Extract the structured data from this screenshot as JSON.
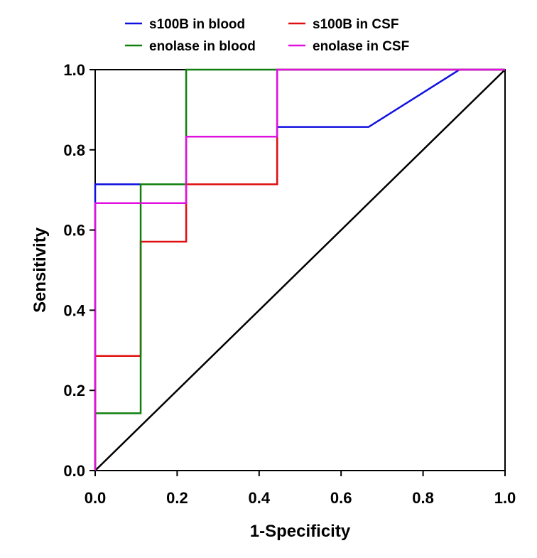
{
  "chart_data": {
    "type": "line",
    "title": "",
    "xlabel": "1-Specificity",
    "ylabel": "Sensitivity",
    "xlim": [
      0,
      1
    ],
    "ylim": [
      0,
      1
    ],
    "xticks": [
      "0.0",
      "0.2",
      "0.4",
      "0.6",
      "0.8",
      "1.0"
    ],
    "yticks": [
      "0.0",
      "0.2",
      "0.4",
      "0.6",
      "0.8",
      "1.0"
    ],
    "grid": false,
    "legend_position": "top",
    "series": [
      {
        "name": "s100B in blood",
        "color": "#1010e0",
        "x": [
          0,
          0,
          0.222,
          0.444,
          0.444,
          0.667,
          0.889,
          1.0
        ],
        "y": [
          0,
          0.714,
          0.714,
          0.714,
          0.857,
          0.857,
          1.0,
          1.0
        ]
      },
      {
        "name": "s100B in CSF",
        "color": "#e01010",
        "x": [
          0,
          0,
          0.111,
          0.111,
          0.222,
          0.222,
          0.444,
          0.444,
          1.0
        ],
        "y": [
          0,
          0.286,
          0.286,
          0.571,
          0.571,
          0.714,
          0.714,
          1.0,
          1.0
        ]
      },
      {
        "name": "enolase in blood",
        "color": "#108010",
        "x": [
          0,
          0,
          0.111,
          0.111,
          0.222,
          0.222,
          0.444,
          0.444,
          1.0
        ],
        "y": [
          0,
          0.143,
          0.143,
          0.714,
          0.714,
          1.0,
          1.0,
          1.0,
          1.0
        ]
      },
      {
        "name": "enolase in CSF",
        "color": "#e010e0",
        "x": [
          0,
          0,
          0.222,
          0.222,
          0.444,
          0.444,
          1.0
        ],
        "y": [
          0,
          0.667,
          0.667,
          0.833,
          0.833,
          1.0,
          1.0
        ]
      }
    ],
    "reference_line": {
      "color": "#000000",
      "x": [
        0,
        1
      ],
      "y": [
        0,
        1
      ]
    }
  }
}
